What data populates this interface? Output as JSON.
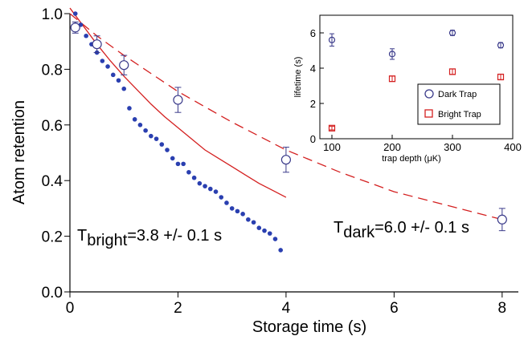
{
  "chart_data": [
    {
      "type": "scatter",
      "xlabel": "Storage time (s)",
      "ylabel": "Atom retention",
      "xlim": [
        0,
        8.3
      ],
      "ylim": [
        0,
        1.0
      ],
      "x_ticks": [
        "0",
        "2",
        "4",
        "6",
        "8"
      ],
      "y_ticks": [
        "0.0",
        "0.2",
        "0.4",
        "0.6",
        "0.8",
        "1.0"
      ],
      "grid": false,
      "series": [
        {
          "marker": "filled-circle",
          "color": "#2a3fb0",
          "x": [
            0.1,
            0.2,
            0.3,
            0.4,
            0.5,
            0.6,
            0.7,
            0.8,
            0.9,
            1.0,
            1.1,
            1.2,
            1.3,
            1.4,
            1.5,
            1.6,
            1.7,
            1.8,
            1.9,
            2.0,
            2.1,
            2.2,
            2.3,
            2.4,
            2.5,
            2.6,
            2.7,
            2.8,
            2.9,
            3.0,
            3.1,
            3.2,
            3.3,
            3.4,
            3.5,
            3.6,
            3.7,
            3.8,
            3.9
          ],
          "y": [
            1.0,
            0.96,
            0.92,
            0.89,
            0.86,
            0.83,
            0.81,
            0.78,
            0.76,
            0.73,
            0.66,
            0.62,
            0.6,
            0.58,
            0.56,
            0.55,
            0.53,
            0.51,
            0.48,
            0.46,
            0.46,
            0.43,
            0.41,
            0.39,
            0.38,
            0.37,
            0.36,
            0.34,
            0.32,
            0.3,
            0.29,
            0.28,
            0.26,
            0.25,
            0.23,
            0.22,
            0.21,
            0.19,
            0.15
          ]
        },
        {
          "marker": "open-circle-errorbar",
          "color": "#3a3a8a",
          "x": [
            0.1,
            0.5,
            1.0,
            2.0,
            4.0,
            8.0
          ],
          "y": [
            0.95,
            0.89,
            0.815,
            0.69,
            0.475,
            0.26
          ],
          "err": [
            0.02,
            0.03,
            0.035,
            0.045,
            0.045,
            0.04
          ]
        },
        {
          "style": "solid-line",
          "color": "#d42020",
          "x": [
            0.0,
            0.25,
            0.5,
            0.75,
            1.0,
            1.25,
            1.5,
            1.75,
            2.0,
            2.25,
            2.5,
            2.75,
            3.0,
            3.25,
            3.5,
            3.75,
            4.0
          ],
          "y": [
            1.02,
            0.955,
            0.89,
            0.83,
            0.775,
            0.725,
            0.675,
            0.63,
            0.59,
            0.55,
            0.51,
            0.48,
            0.45,
            0.42,
            0.39,
            0.365,
            0.34
          ]
        },
        {
          "style": "dashed-line",
          "color": "#d42020",
          "x": [
            0.0,
            0.5,
            1.0,
            2.0,
            3.0,
            4.0,
            5.0,
            6.0,
            7.0,
            8.0
          ],
          "y": [
            1.0,
            0.92,
            0.85,
            0.72,
            0.61,
            0.51,
            0.43,
            0.36,
            0.31,
            0.26
          ]
        }
      ],
      "annotations": [
        {
          "main": "T",
          "sub": "bright",
          "rest": "=3.8 +/- 0.1 s"
        },
        {
          "main": "T",
          "sub": "dark",
          "rest": "=6.0 +/- 0.1 s"
        }
      ]
    },
    {
      "type": "scatter",
      "xlabel_parts": [
        "trap depth (",
        "μ",
        "K)"
      ],
      "ylabel": "lifetime (s)",
      "xlim": [
        80,
        400
      ],
      "ylim": [
        0,
        7
      ],
      "x_ticks": [
        "100",
        "200",
        "300",
        "400"
      ],
      "y_ticks": [
        "0",
        "2",
        "4",
        "6"
      ],
      "legend_position": "bottom-right",
      "series": [
        {
          "name": "Dark Trap",
          "marker": "open-circle",
          "color": "#3a3a8a",
          "x": [
            100,
            200,
            300,
            380
          ],
          "y": [
            5.6,
            4.8,
            6.0,
            5.3
          ],
          "err": [
            0.35,
            0.3,
            0.15,
            0.15
          ]
        },
        {
          "name": "Bright Trap",
          "marker": "open-square",
          "color": "#d42020",
          "x": [
            100,
            200,
            300,
            380
          ],
          "y": [
            0.6,
            3.4,
            3.8,
            3.5
          ],
          "err": [
            0.1,
            0.15,
            0.15,
            0.15
          ]
        }
      ]
    }
  ]
}
